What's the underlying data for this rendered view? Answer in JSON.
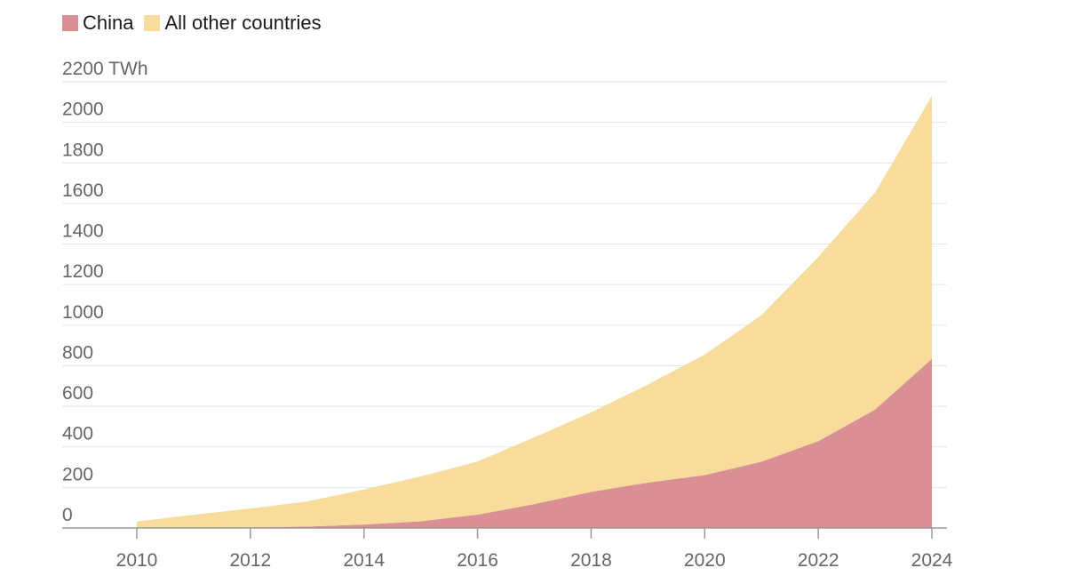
{
  "chart_data": {
    "type": "area",
    "stacked": true,
    "x": [
      2010,
      2011,
      2012,
      2013,
      2014,
      2015,
      2016,
      2017,
      2018,
      2019,
      2020,
      2021,
      2022,
      2023,
      2024
    ],
    "series": [
      {
        "name": "China",
        "color": "#d98f93",
        "values": [
          0,
          1,
          3,
          7,
          17,
          33,
          66,
          118,
          178,
          224,
          261,
          327,
          428,
          584,
          834
        ]
      },
      {
        "name": "All other countries",
        "color": "#f7dc9b",
        "values": [
          32,
          64,
          93,
          124,
          173,
          221,
          262,
          329,
          392,
          483,
          594,
          722,
          908,
          1070,
          1296
        ]
      }
    ],
    "ylim": [
      0,
      2200
    ],
    "y_unit_label": "2200 TWh",
    "y_ticks": [
      "0",
      "200",
      "400",
      "600",
      "800",
      "1000",
      "1200",
      "1400",
      "1600",
      "1800",
      "2000"
    ],
    "x_ticks": [
      "2010",
      "2012",
      "2014",
      "2016",
      "2018",
      "2020",
      "2022",
      "2024"
    ],
    "grid": true,
    "legend_position": "top-left",
    "gridline_color": "#e6e6e6",
    "axis_color": "#999999"
  }
}
